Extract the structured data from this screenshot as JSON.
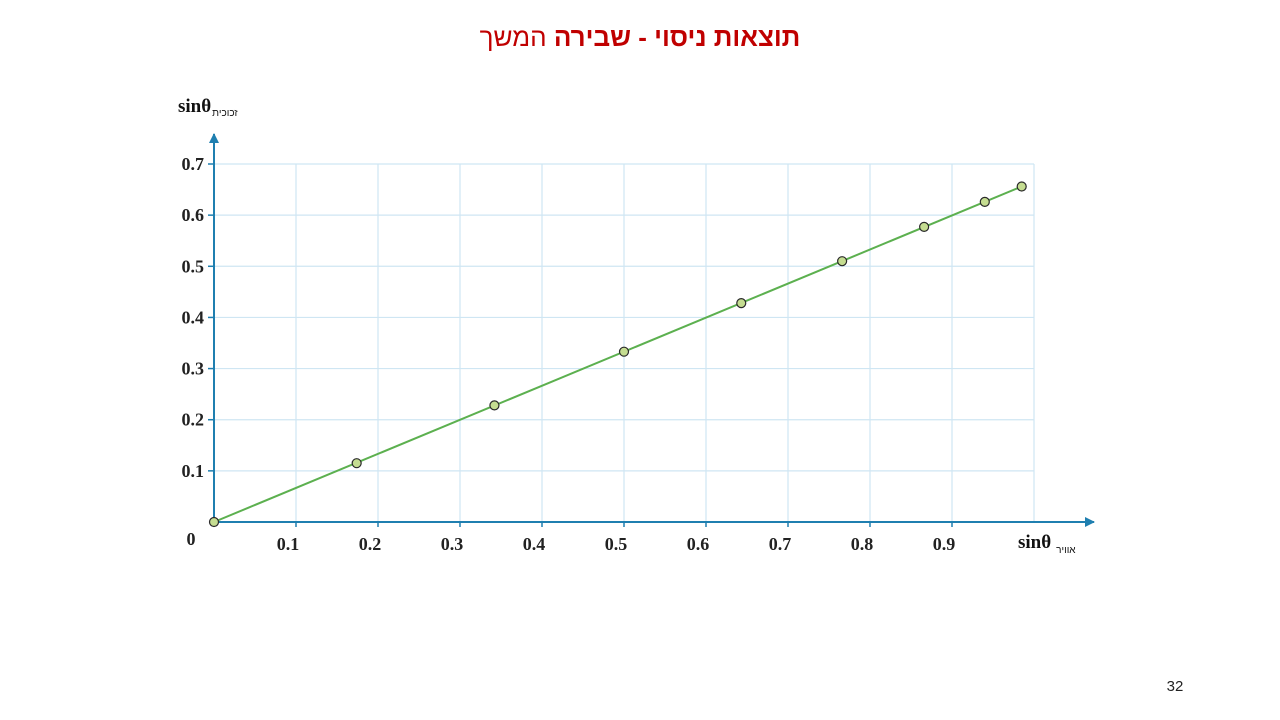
{
  "slide": {
    "title_bold": "תוצאות ניסוי - שבירה",
    "title_light": "המשך",
    "page_number": "32"
  },
  "colors": {
    "title": "#c00000",
    "axis": "#1f7fb0",
    "grid": "#cfe6f3",
    "fit_line": "#5cb04f",
    "point_fill": "#c5dd91",
    "point_stroke": "#2a2a2a"
  },
  "chart_data": {
    "type": "scatter",
    "x": [
      0,
      0.174,
      0.342,
      0.5,
      0.643,
      0.766,
      0.866,
      0.94,
      0.985
    ],
    "y": [
      0,
      0.115,
      0.228,
      0.333,
      0.428,
      0.51,
      0.577,
      0.626,
      0.656
    ],
    "fit_line": {
      "x": [
        0,
        0.985
      ],
      "y": [
        0,
        0.656
      ]
    },
    "xlabel_main": "sinθ",
    "xlabel_sub": "אוויר",
    "ylabel_main": "sinθ",
    "ylabel_sub": "זכוכית",
    "origin_label": "0",
    "xlim": [
      0,
      1
    ],
    "ylim": [
      0,
      0.7
    ],
    "x_ticks": [
      "0.1",
      "0.2",
      "0.3",
      "0.4",
      "0.5",
      "0.6",
      "0.7",
      "0.8",
      "0.9"
    ],
    "y_ticks": [
      "0.1",
      "0.2",
      "0.3",
      "0.4",
      "0.5",
      "0.6",
      "0.7"
    ],
    "grid": true,
    "legend": "none"
  }
}
